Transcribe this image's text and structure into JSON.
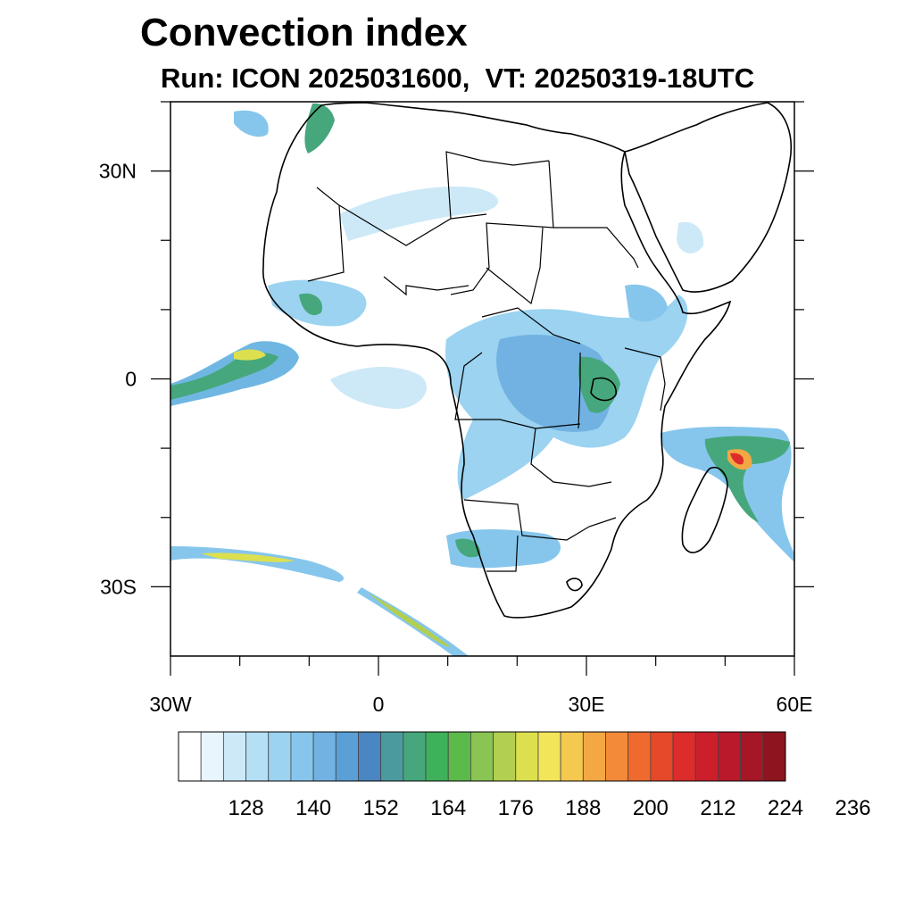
{
  "title": "Convection index",
  "subtitle": "Run: ICON 2025031600,  VT: 20250319-18UTC",
  "map": {
    "projection": "equirectangular",
    "lon_range": [
      -30,
      60
    ],
    "lat_range": [
      -40,
      40
    ],
    "lat_tick_labels": [
      {
        "lat": 30,
        "label": "30N"
      },
      {
        "lat": 0,
        "label": "0"
      },
      {
        "lat": -30,
        "label": "30S"
      }
    ],
    "lon_tick_labels": [
      {
        "lon": -30,
        "label": "30W"
      },
      {
        "lon": 0,
        "label": "0"
      },
      {
        "lon": 30,
        "label": "30E"
      },
      {
        "lon": 60,
        "label": "60E"
      }
    ],
    "minor_tick_step_deg": 10,
    "features": {
      "coastlines": true,
      "country_borders": true,
      "field": "convection index (shaded contours)"
    }
  },
  "colorbar": {
    "colors": [
      "#ffffff",
      "#e8f5fc",
      "#cde9f7",
      "#b4dff5",
      "#9bd3f1",
      "#86c6ec",
      "#72b2e2",
      "#5a9fd5",
      "#4a86c2",
      "#4a9a9e",
      "#46a77c",
      "#3fb15a",
      "#5cba4b",
      "#8ac452",
      "#b3cf4f",
      "#dde04e",
      "#f2e55a",
      "#f5c84f",
      "#f3a843",
      "#f28a3a",
      "#ee6a2f",
      "#e5492a",
      "#dc2c2b",
      "#cc1f2c",
      "#b9192a",
      "#a51726",
      "#8e1520"
    ],
    "labels": [
      "128",
      "140",
      "152",
      "164",
      "176",
      "188",
      "200",
      "212",
      "224",
      "236"
    ]
  }
}
